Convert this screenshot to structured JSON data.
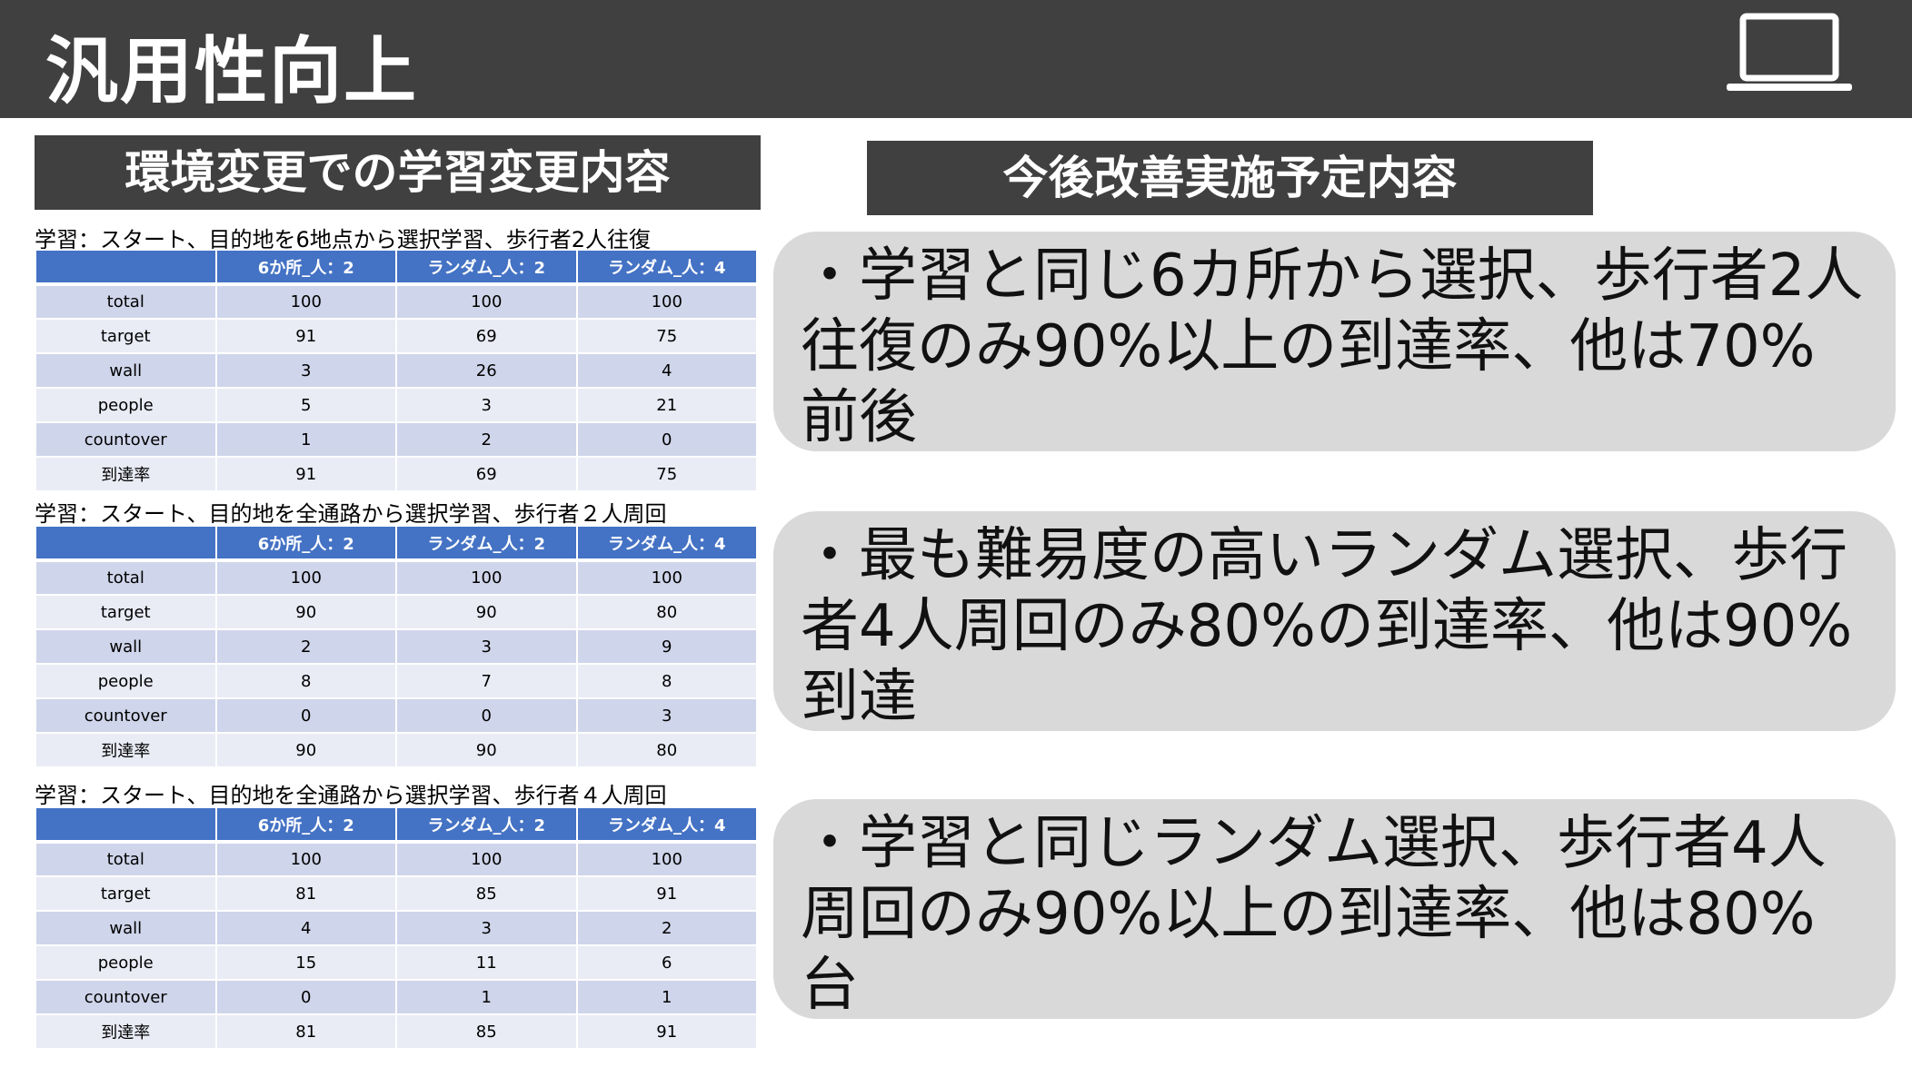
{
  "title": "汎用性向上",
  "left_heading": "環境変更での学習変更内容",
  "right_heading": "今後改善実施予定内容",
  "columns": [
    "",
    "6か所_人：2",
    "ランダム_人：2",
    "ランダム_人：4"
  ],
  "tables": [
    {
      "caption": "学習：スタート、目的地を6地点から選択学習、歩行者2人往復",
      "rows": [
        [
          "total",
          "100",
          "100",
          "100"
        ],
        [
          "target",
          "91",
          "69",
          "75"
        ],
        [
          "wall",
          "3",
          "26",
          "4"
        ],
        [
          "people",
          "5",
          "3",
          "21"
        ],
        [
          "countover",
          "1",
          "2",
          "0"
        ],
        [
          "到達率",
          "91",
          "69",
          "75"
        ]
      ]
    },
    {
      "caption": "学習：スタート、目的地を全通路から選択学習、歩行者２人周回",
      "rows": [
        [
          "total",
          "100",
          "100",
          "100"
        ],
        [
          "target",
          "90",
          "90",
          "80"
        ],
        [
          "wall",
          "2",
          "3",
          "9"
        ],
        [
          "people",
          "8",
          "7",
          "8"
        ],
        [
          "countover",
          "0",
          "0",
          "3"
        ],
        [
          "到達率",
          "90",
          "90",
          "80"
        ]
      ]
    },
    {
      "caption": "学習：スタート、目的地を全通路から選択学習、歩行者４人周回",
      "rows": [
        [
          "total",
          "100",
          "100",
          "100"
        ],
        [
          "target",
          "81",
          "85",
          "91"
        ],
        [
          "wall",
          "4",
          "3",
          "2"
        ],
        [
          "people",
          "15",
          "11",
          "6"
        ],
        [
          "countover",
          "0",
          "1",
          "1"
        ],
        [
          "到達率",
          "81",
          "85",
          "91"
        ]
      ]
    }
  ],
  "notes": [
    "・学習と同じ6カ所から選択、歩行者2人往復のみ90%以上の到達率、他は70%前後",
    "・最も難易度の高いランダム選択、歩行者4人周回のみ80%の到達率、他は90%到達",
    "・学習と同じランダム選択、歩行者4人周回のみ90%以上の到達率、他は80%台"
  ]
}
